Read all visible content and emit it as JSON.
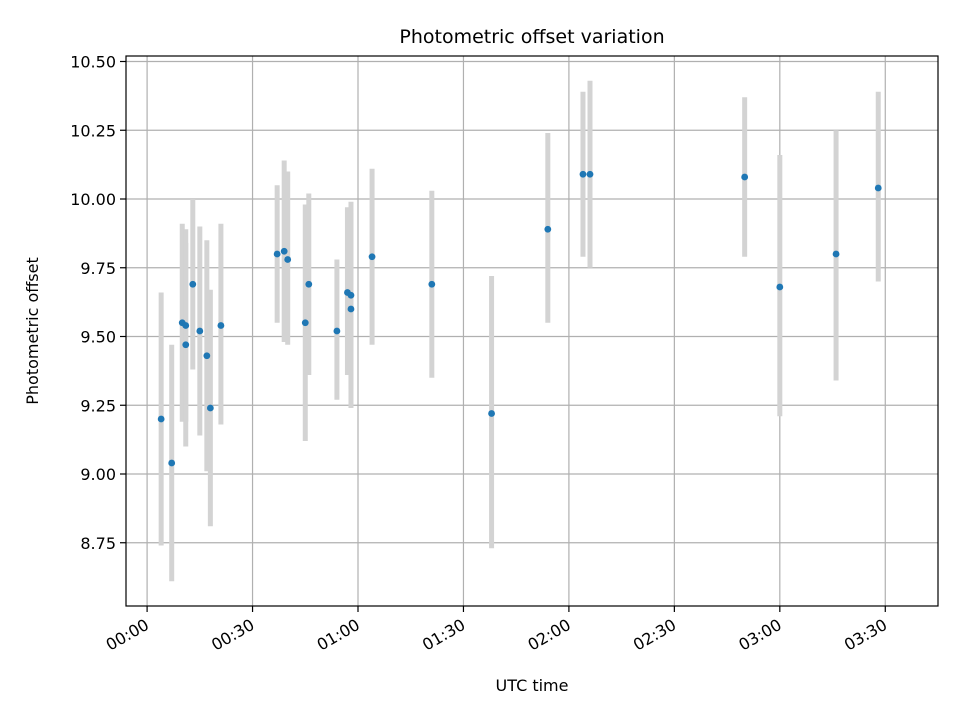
{
  "chart_data": {
    "type": "scatter",
    "title": "Photometric offset variation",
    "xlabel": "UTC time",
    "ylabel": "Photometric offset",
    "grid": true,
    "xlim": [
      "-00:06",
      "03:45"
    ],
    "ylim": [
      8.52,
      10.52
    ],
    "x_ticks": [
      "00:00",
      "00:30",
      "01:00",
      "01:30",
      "02:00",
      "02:30",
      "03:00",
      "03:30"
    ],
    "y_ticks": [
      "8.75",
      "9.00",
      "9.25",
      "9.50",
      "9.75",
      "10.00",
      "10.25",
      "10.50"
    ],
    "colors": {
      "point": "#1f77b4",
      "errorbar": "#d3d3d3",
      "grid": "#b0b0b0"
    },
    "series": [
      {
        "points": [
          {
            "x": "00:04",
            "y": 9.2,
            "low": 8.74,
            "high": 9.66
          },
          {
            "x": "00:07",
            "y": 9.04,
            "low": 8.61,
            "high": 9.47
          },
          {
            "x": "00:10",
            "y": 9.55,
            "low": 9.19,
            "high": 9.91
          },
          {
            "x": "00:11",
            "y": 9.54,
            "low": 9.19,
            "high": 9.89
          },
          {
            "x": "00:11",
            "y": 9.47,
            "low": 9.1,
            "high": 9.84
          },
          {
            "x": "00:13",
            "y": 9.69,
            "low": 9.38,
            "high": 10.0
          },
          {
            "x": "00:15",
            "y": 9.52,
            "low": 9.14,
            "high": 9.9
          },
          {
            "x": "00:17",
            "y": 9.43,
            "low": 9.01,
            "high": 9.85
          },
          {
            "x": "00:18",
            "y": 9.24,
            "low": 8.81,
            "high": 9.67
          },
          {
            "x": "00:21",
            "y": 9.54,
            "low": 9.18,
            "high": 9.91
          },
          {
            "x": "00:37",
            "y": 9.8,
            "low": 9.55,
            "high": 10.05
          },
          {
            "x": "00:39",
            "y": 9.81,
            "low": 9.48,
            "high": 10.14
          },
          {
            "x": "00:40",
            "y": 9.78,
            "low": 9.47,
            "high": 10.1
          },
          {
            "x": "00:45",
            "y": 9.55,
            "low": 9.12,
            "high": 9.98
          },
          {
            "x": "00:46",
            "y": 9.69,
            "low": 9.36,
            "high": 10.02
          },
          {
            "x": "00:54",
            "y": 9.52,
            "low": 9.27,
            "high": 9.78
          },
          {
            "x": "00:57",
            "y": 9.66,
            "low": 9.36,
            "high": 9.97
          },
          {
            "x": "00:58",
            "y": 9.6,
            "low": 9.24,
            "high": 9.95
          },
          {
            "x": "00:58",
            "y": 9.65,
            "low": 9.31,
            "high": 9.99
          },
          {
            "x": "01:04",
            "y": 9.79,
            "low": 9.47,
            "high": 10.11
          },
          {
            "x": "01:21",
            "y": 9.69,
            "low": 9.35,
            "high": 10.03
          },
          {
            "x": "01:38",
            "y": 9.22,
            "low": 8.73,
            "high": 9.72
          },
          {
            "x": "01:54",
            "y": 9.89,
            "low": 9.55,
            "high": 10.24
          },
          {
            "x": "02:04",
            "y": 10.09,
            "low": 9.79,
            "high": 10.39
          },
          {
            "x": "02:06",
            "y": 10.09,
            "low": 9.75,
            "high": 10.43
          },
          {
            "x": "02:50",
            "y": 10.08,
            "low": 9.79,
            "high": 10.37
          },
          {
            "x": "03:00",
            "y": 9.68,
            "low": 9.21,
            "high": 10.16
          },
          {
            "x": "03:16",
            "y": 9.8,
            "low": 9.34,
            "high": 10.25
          },
          {
            "x": "03:28",
            "y": 10.04,
            "low": 9.7,
            "high": 10.39
          }
        ]
      }
    ]
  }
}
